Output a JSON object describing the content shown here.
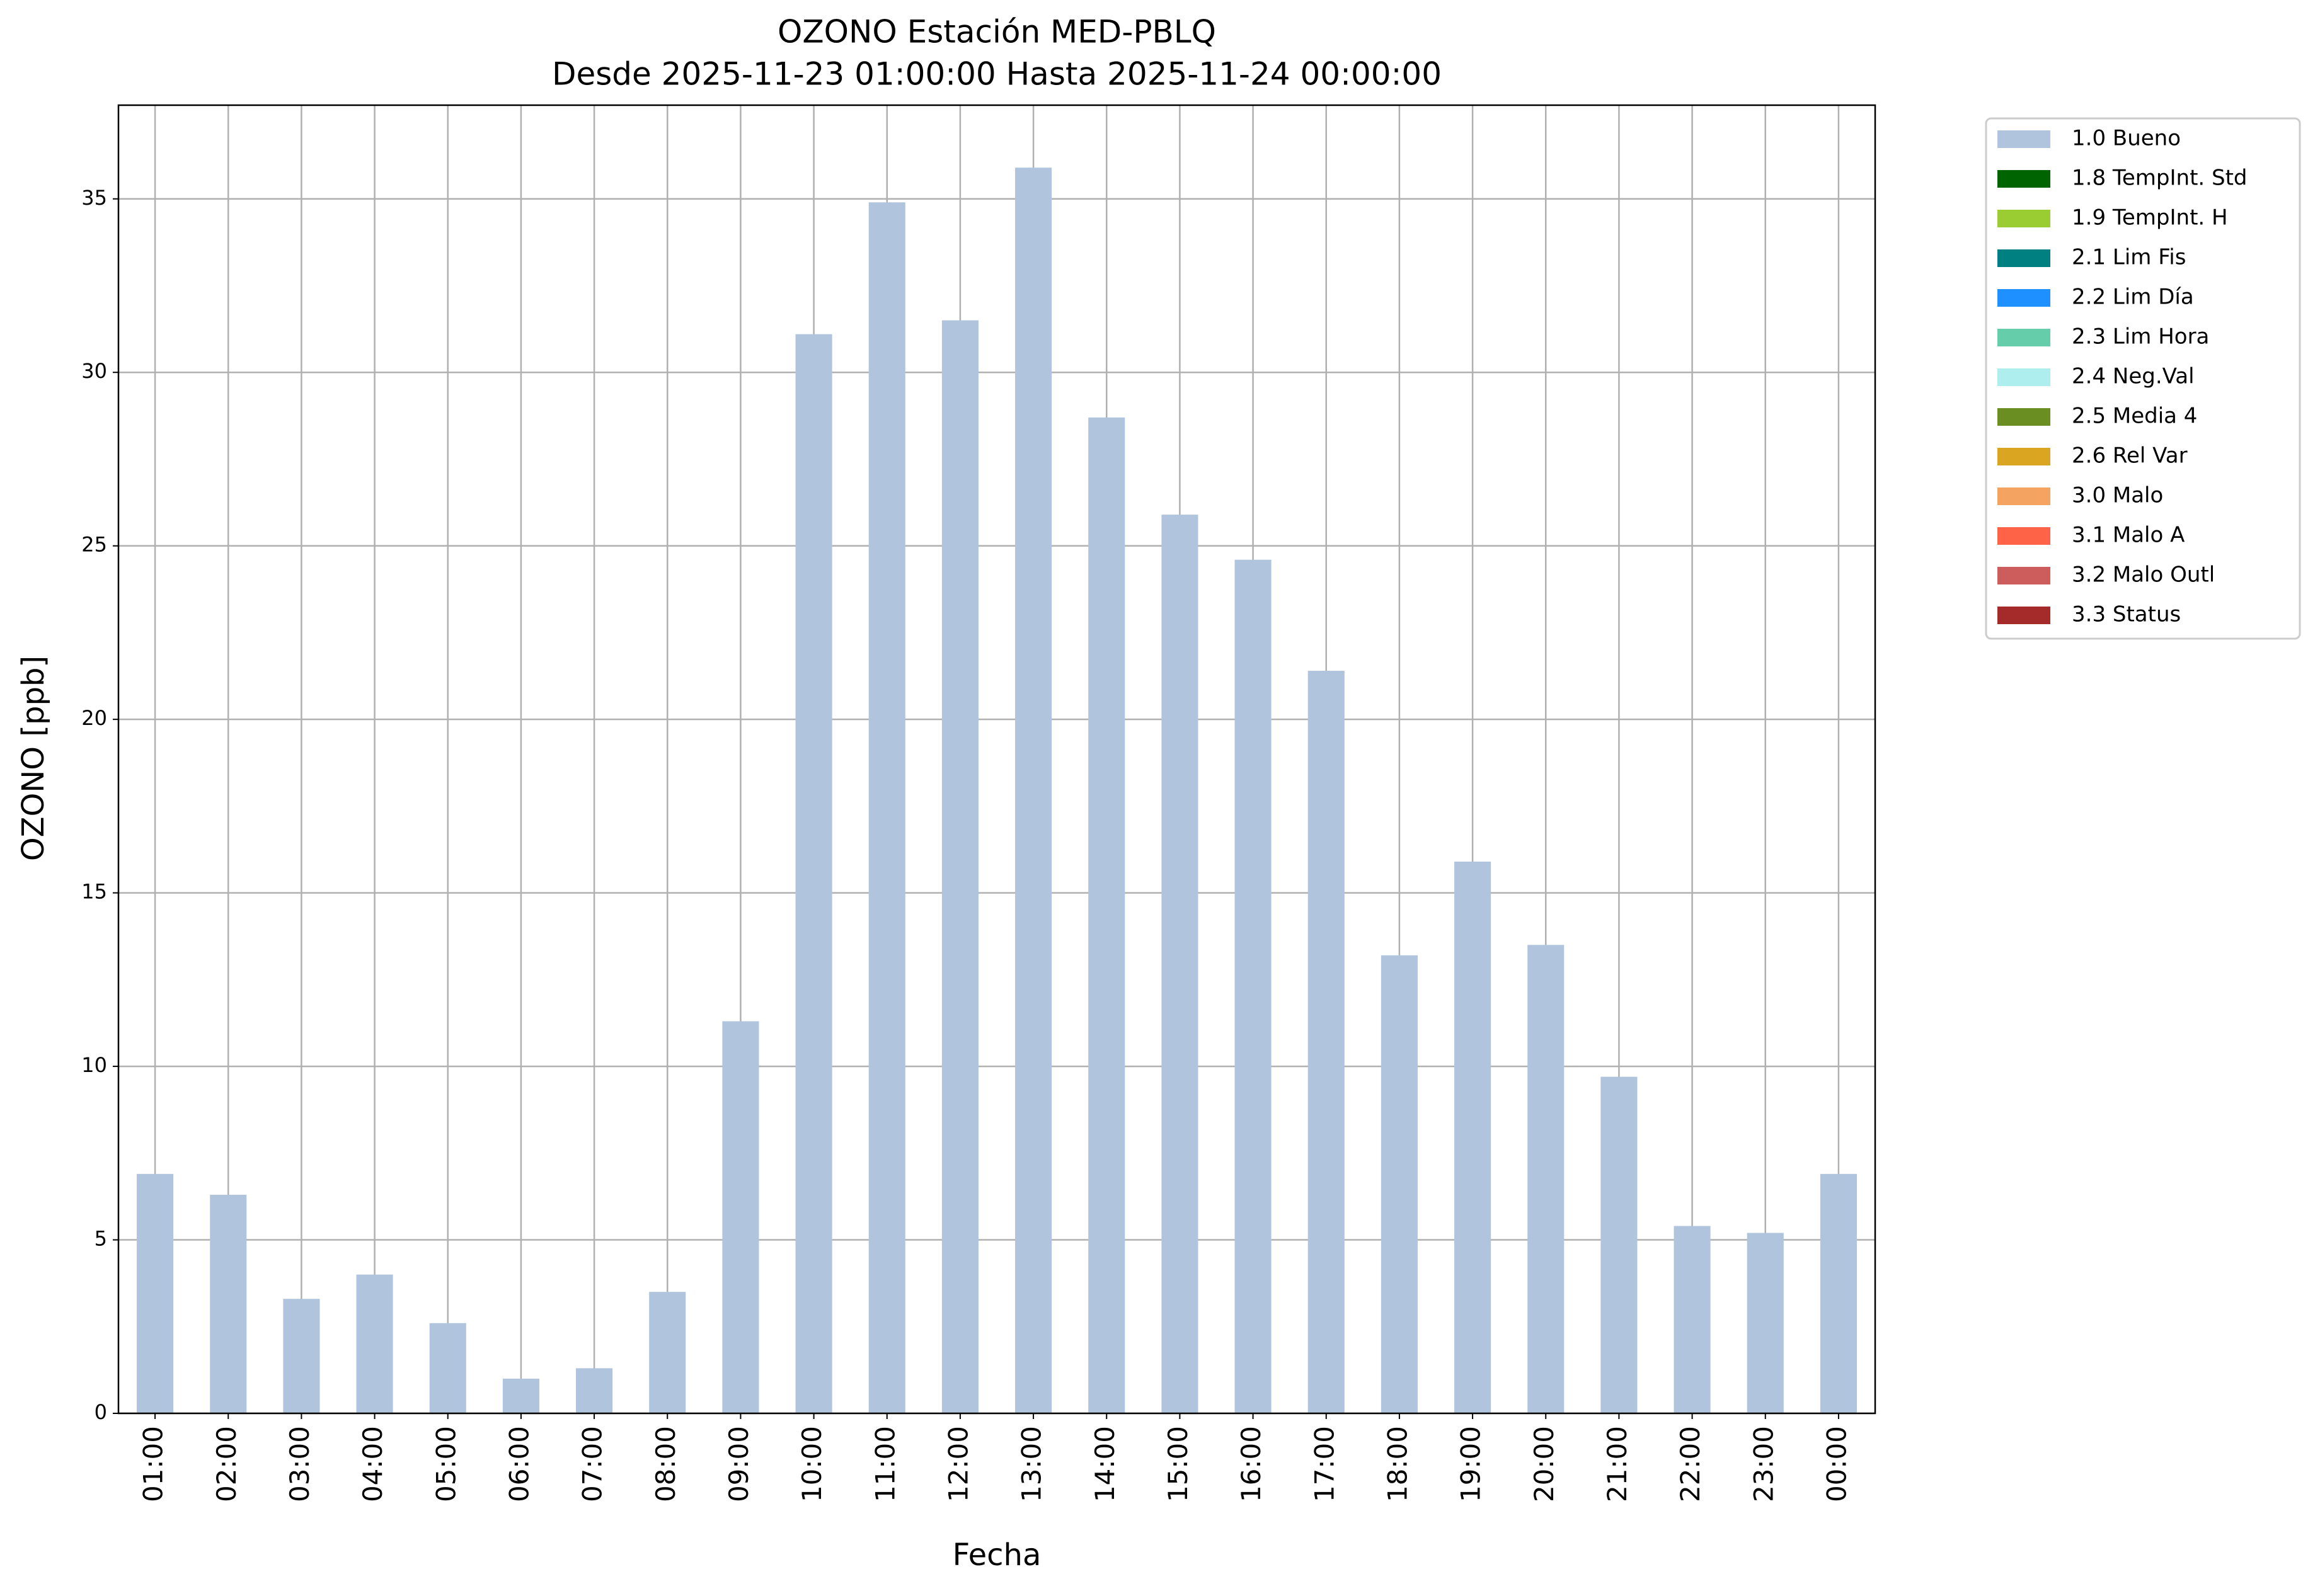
{
  "chart_data": {
    "type": "bar",
    "title": "OZONO Estación MED-PBLQ",
    "subtitle": "Desde 2025-11-23 01:00:00 Hasta 2025-11-24 00:00:00",
    "x_label": "Fecha",
    "y_label": "OZONO [ppb]",
    "categories": [
      "01:00",
      "02:00",
      "03:00",
      "04:00",
      "05:00",
      "06:00",
      "07:00",
      "08:00",
      "09:00",
      "10:00",
      "11:00",
      "12:00",
      "13:00",
      "14:00",
      "15:00",
      "16:00",
      "17:00",
      "18:00",
      "19:00",
      "20:00",
      "21:00",
      "22:00",
      "23:00",
      "00:00"
    ],
    "series": [
      {
        "name": "1.0 Bueno",
        "color": "#b0c4de",
        "values": [
          6.9,
          6.3,
          3.3,
          4.0,
          2.6,
          1.0,
          1.3,
          3.5,
          11.3,
          31.1,
          34.9,
          31.5,
          35.9,
          28.7,
          25.9,
          24.6,
          21.4,
          13.2,
          15.9,
          13.5,
          9.7,
          5.4,
          5.2,
          6.9
        ]
      },
      {
        "name": "1.8 TempInt. Std",
        "color": "#006400",
        "values": [
          null,
          null,
          null,
          null,
          null,
          null,
          null,
          null,
          null,
          null,
          null,
          null,
          null,
          null,
          null,
          null,
          null,
          null,
          null,
          null,
          null,
          null,
          null,
          null
        ]
      },
      {
        "name": "1.9 TempInt. H",
        "color": "#9acd32",
        "values": [
          null,
          null,
          null,
          null,
          null,
          null,
          null,
          null,
          null,
          null,
          null,
          null,
          null,
          null,
          null,
          null,
          null,
          null,
          null,
          null,
          null,
          null,
          null,
          null
        ]
      },
      {
        "name": "2.1 Lim Fis",
        "color": "#008080",
        "values": [
          null,
          null,
          null,
          null,
          null,
          null,
          null,
          null,
          null,
          null,
          null,
          null,
          null,
          null,
          null,
          null,
          null,
          null,
          null,
          null,
          null,
          null,
          null,
          null
        ]
      },
      {
        "name": "2.2 Lim Día",
        "color": "#1e90ff",
        "values": [
          null,
          null,
          null,
          null,
          null,
          null,
          null,
          null,
          null,
          null,
          null,
          null,
          null,
          null,
          null,
          null,
          null,
          null,
          null,
          null,
          null,
          null,
          null,
          null
        ]
      },
      {
        "name": "2.3 Lim Hora",
        "color": "#66cdaa",
        "values": [
          null,
          null,
          null,
          null,
          null,
          null,
          null,
          null,
          null,
          null,
          null,
          null,
          null,
          null,
          null,
          null,
          null,
          null,
          null,
          null,
          null,
          null,
          null,
          null
        ]
      },
      {
        "name": "2.4 Neg.Val",
        "color": "#afeeee",
        "values": [
          null,
          null,
          null,
          null,
          null,
          null,
          null,
          null,
          null,
          null,
          null,
          null,
          null,
          null,
          null,
          null,
          null,
          null,
          null,
          null,
          null,
          null,
          null,
          null
        ]
      },
      {
        "name": "2.5 Media 4",
        "color": "#6b8e23",
        "values": [
          null,
          null,
          null,
          null,
          null,
          null,
          null,
          null,
          null,
          null,
          null,
          null,
          null,
          null,
          null,
          null,
          null,
          null,
          null,
          null,
          null,
          null,
          null,
          null
        ]
      },
      {
        "name": "2.6 Rel Var",
        "color": "#daa520",
        "values": [
          null,
          null,
          null,
          null,
          null,
          null,
          null,
          null,
          null,
          null,
          null,
          null,
          null,
          null,
          null,
          null,
          null,
          null,
          null,
          null,
          null,
          null,
          null,
          null
        ]
      },
      {
        "name": "3.0 Malo",
        "color": "#f4a460",
        "values": [
          null,
          null,
          null,
          null,
          null,
          null,
          null,
          null,
          null,
          null,
          null,
          null,
          null,
          null,
          null,
          null,
          null,
          null,
          null,
          null,
          null,
          null,
          null,
          null
        ]
      },
      {
        "name": "3.1 Malo A",
        "color": "#ff6347",
        "values": [
          null,
          null,
          null,
          null,
          null,
          null,
          null,
          null,
          null,
          null,
          null,
          null,
          null,
          null,
          null,
          null,
          null,
          null,
          null,
          null,
          null,
          null,
          null,
          null
        ]
      },
      {
        "name": "3.2 Malo Outl",
        "color": "#cd5c5c",
        "values": [
          null,
          null,
          null,
          null,
          null,
          null,
          null,
          null,
          null,
          null,
          null,
          null,
          null,
          null,
          null,
          null,
          null,
          null,
          null,
          null,
          null,
          null,
          null,
          null
        ]
      },
      {
        "name": "3.3 Status",
        "color": "#a52a2a",
        "values": [
          null,
          null,
          null,
          null,
          null,
          null,
          null,
          null,
          null,
          null,
          null,
          null,
          null,
          null,
          null,
          null,
          null,
          null,
          null,
          null,
          null,
          null,
          null,
          null
        ]
      }
    ],
    "ylim": [
      0,
      37.7
    ],
    "yticks": [
      0,
      5,
      10,
      15,
      20,
      25,
      30,
      35
    ],
    "grid": true,
    "legend": "outside-upper-right"
  }
}
